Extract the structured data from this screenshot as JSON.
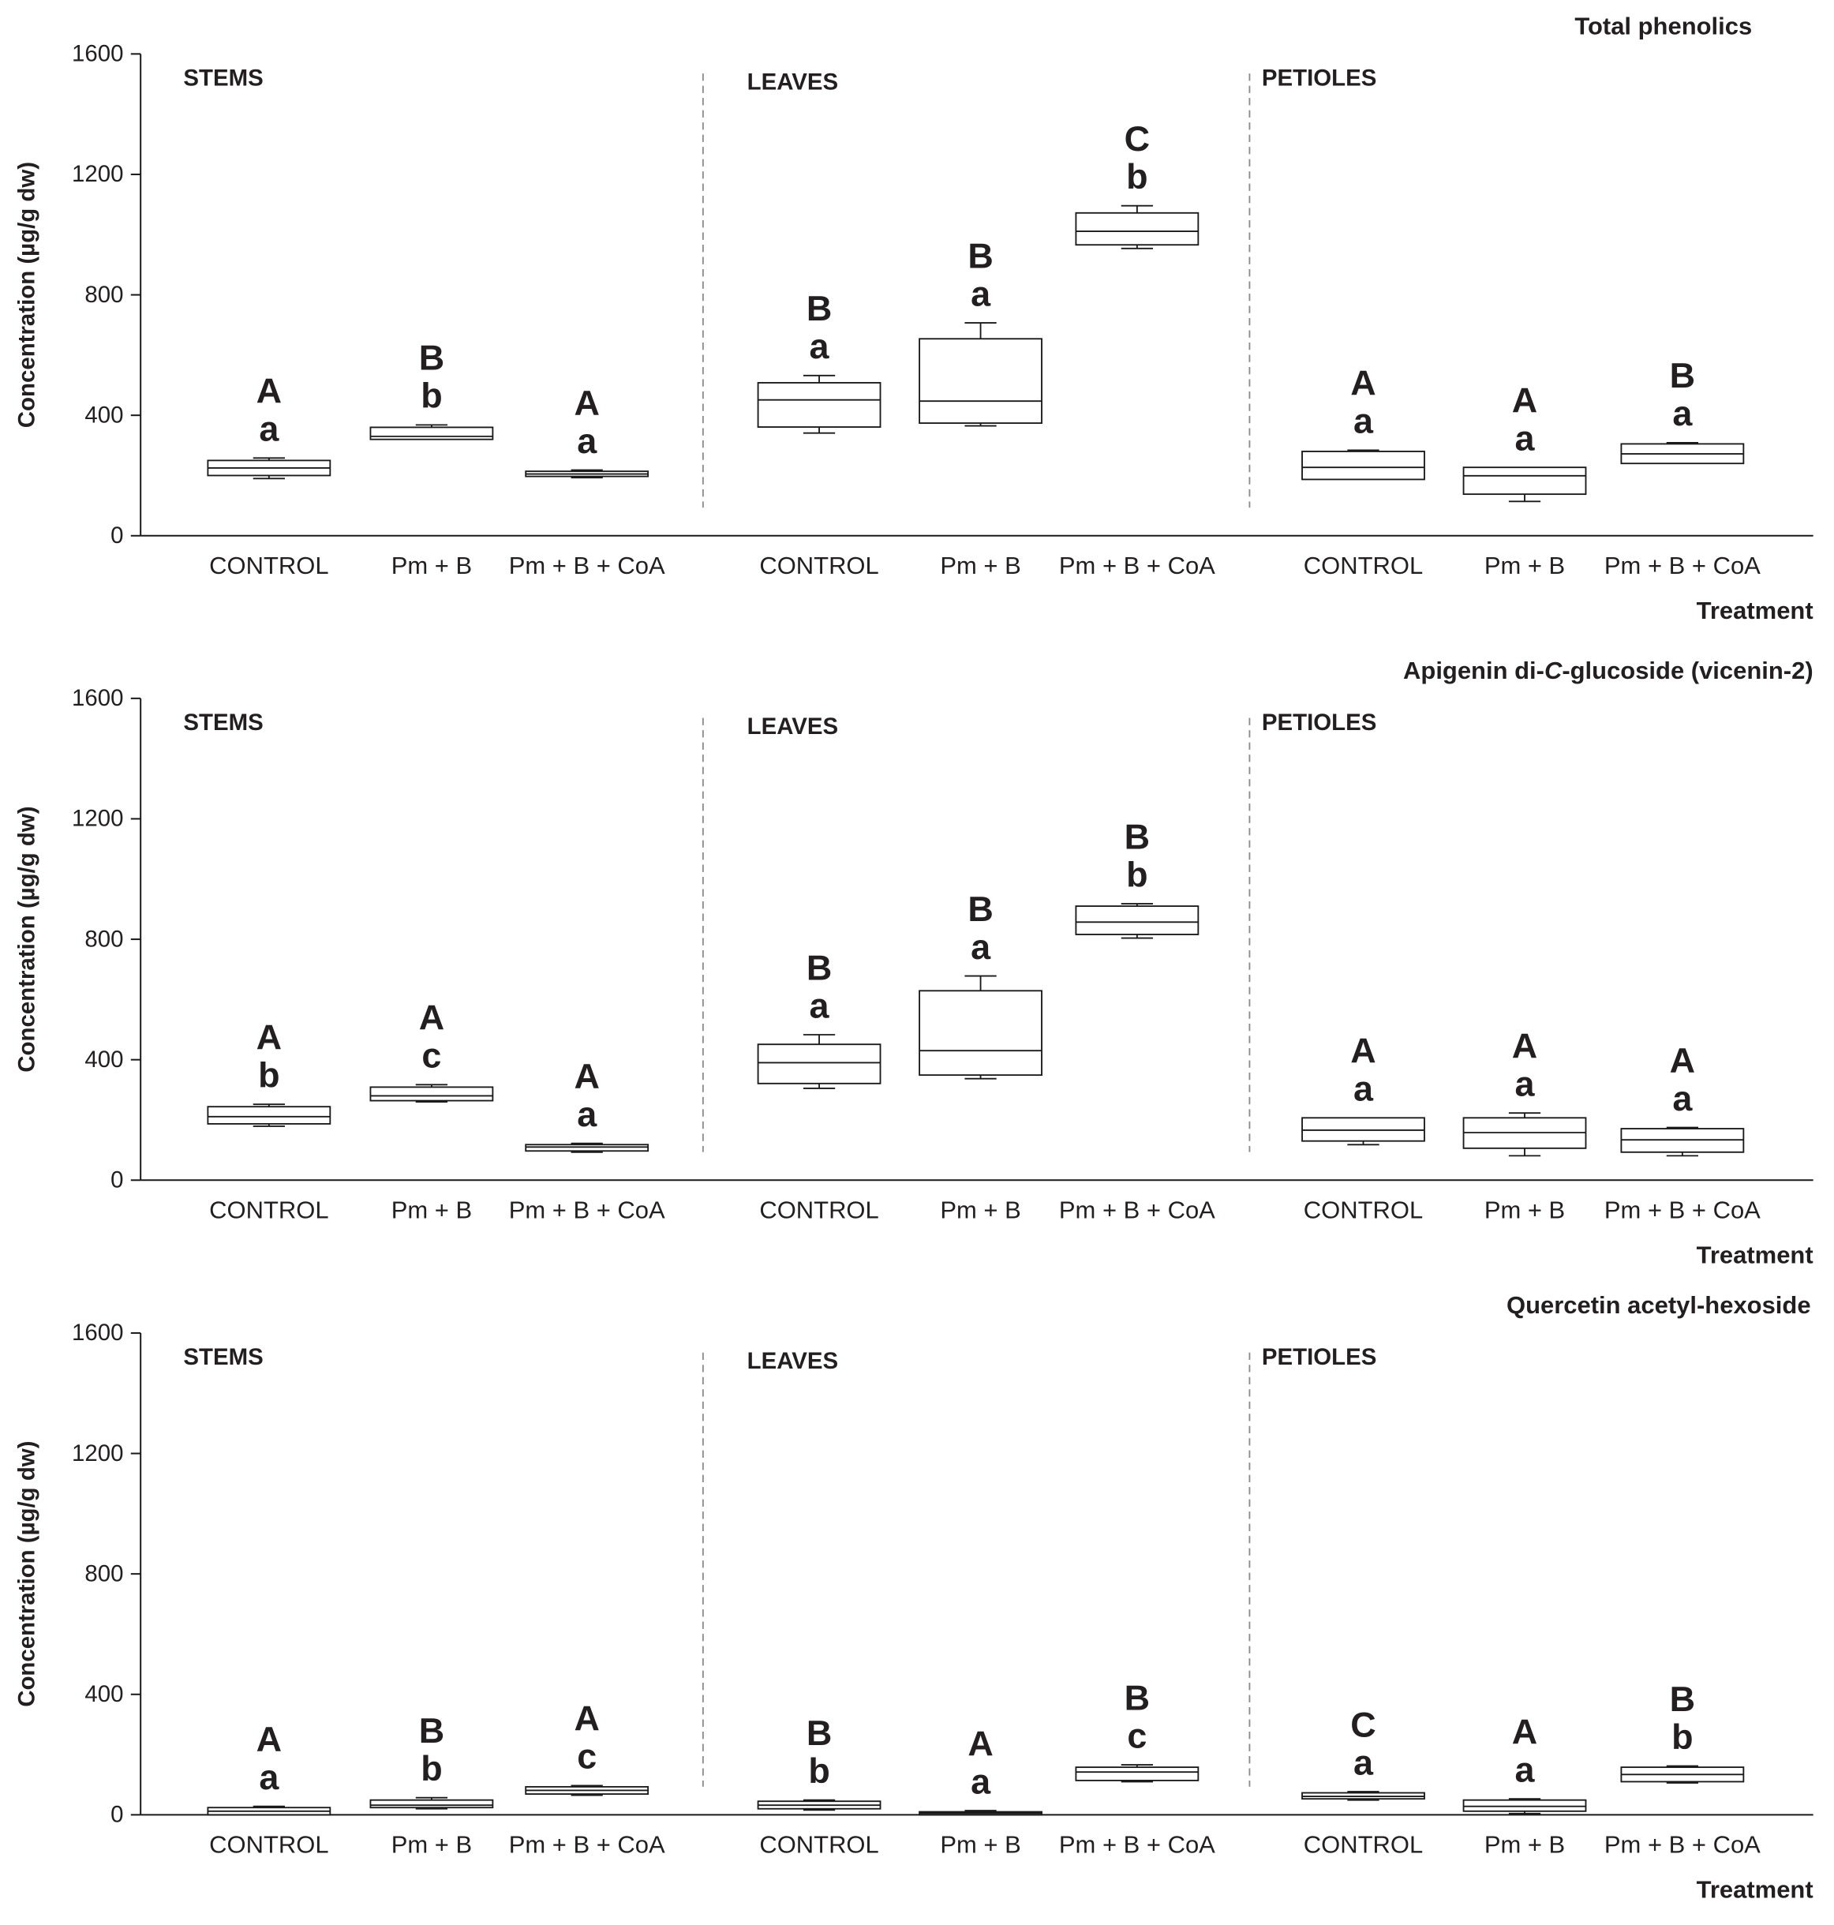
{
  "colors": {
    "text": "#231f20",
    "stroke": "#1a1a1a",
    "box_fill": "#ffffff",
    "divider": "#8c8c8c"
  },
  "chart_data": [
    {
      "type": "box",
      "title_segments": [
        {
          "text": "Total phenolics"
        }
      ],
      "ylabel": "Concentration (µg/g dw)",
      "xlabel": "Treatment",
      "ylim": [
        0,
        1600
      ],
      "yticks": [
        0,
        400,
        800,
        1200,
        1600
      ],
      "groups": [
        {
          "name": "STEMS",
          "boxes": [
            {
              "category": "CONTROL",
              "min": 190,
              "q1": 200,
              "median": 225,
              "q3": 250,
              "max": 258,
              "letters": [
                "A",
                "a"
              ]
            },
            {
              "category": "Pm + B",
              "min": 320,
              "q1": 320,
              "median": 330,
              "q3": 360,
              "max": 368,
              "letters": [
                "B",
                "b"
              ]
            },
            {
              "category": "Pm + B + CoA",
              "min": 193,
              "q1": 197,
              "median": 205,
              "q3": 214,
              "max": 218,
              "letters": [
                "A",
                "a"
              ]
            }
          ]
        },
        {
          "name": "LEAVES",
          "boxes": [
            {
              "category": "CONTROL",
              "min": 341,
              "q1": 361,
              "median": 451,
              "q3": 508,
              "max": 532,
              "letters": [
                "B",
                "a"
              ]
            },
            {
              "category": "Pm + B",
              "min": 365,
              "q1": 374,
              "median": 447,
              "q3": 654,
              "max": 707,
              "letters": [
                "B",
                "a"
              ]
            },
            {
              "category": "Pm + B + CoA",
              "min": 954,
              "q1": 966,
              "median": 1011,
              "q3": 1072,
              "max": 1096,
              "letters": [
                "C",
                "b"
              ]
            }
          ]
        },
        {
          "name": "PETIOLES",
          "boxes": [
            {
              "category": "CONTROL",
              "min": 187,
              "q1": 187,
              "median": 227,
              "q3": 280,
              "max": 284,
              "letters": [
                "A",
                "a"
              ]
            },
            {
              "category": "Pm + B",
              "min": 114,
              "q1": 138,
              "median": 199,
              "q3": 227,
              "max": 227,
              "letters": [
                "A",
                "a"
              ]
            },
            {
              "category": "Pm + B + CoA",
              "min": 240,
              "q1": 240,
              "median": 272,
              "q3": 305,
              "max": 309,
              "letters": [
                "B",
                "a"
              ]
            }
          ]
        }
      ]
    },
    {
      "type": "box",
      "title_segments": [
        {
          "text": "Apigenin di-"
        },
        {
          "text": "C",
          "style": "italic"
        },
        {
          "text": "-glucoside (vicenin-2)"
        }
      ],
      "ylabel": "Concentration (µg/g dw)",
      "xlabel": "Treatment",
      "ylim": [
        0,
        1600
      ],
      "yticks": [
        0,
        400,
        800,
        1200,
        1600
      ],
      "groups": [
        {
          "name": "STEMS",
          "boxes": [
            {
              "category": "CONTROL",
              "min": 179,
              "q1": 187,
              "median": 211,
              "q3": 244,
              "max": 252,
              "letters": [
                "A",
                "b"
              ]
            },
            {
              "category": "Pm + B",
              "min": 260,
              "q1": 264,
              "median": 280,
              "q3": 309,
              "max": 317,
              "letters": [
                "A",
                "c"
              ]
            },
            {
              "category": "Pm + B + CoA",
              "min": 93,
              "q1": 97,
              "median": 110,
              "q3": 118,
              "max": 122,
              "letters": [
                "A",
                "a"
              ]
            }
          ]
        },
        {
          "name": "LEAVES",
          "boxes": [
            {
              "category": "CONTROL",
              "min": 305,
              "q1": 321,
              "median": 390,
              "q3": 451,
              "max": 483,
              "letters": [
                "B",
                "a"
              ]
            },
            {
              "category": "Pm + B",
              "min": 337,
              "q1": 349,
              "median": 430,
              "q3": 629,
              "max": 678,
              "letters": [
                "B",
                "a"
              ]
            },
            {
              "category": "Pm + B + CoA",
              "min": 804,
              "q1": 816,
              "median": 857,
              "q3": 910,
              "max": 918,
              "letters": [
                "B",
                "b"
              ]
            }
          ]
        },
        {
          "name": "PETIOLES",
          "boxes": [
            {
              "category": "CONTROL",
              "min": 118,
              "q1": 130,
              "median": 166,
              "q3": 207,
              "max": 207,
              "letters": [
                "A",
                "a"
              ]
            },
            {
              "category": "Pm + B",
              "min": 81,
              "q1": 106,
              "median": 158,
              "q3": 207,
              "max": 223,
              "letters": [
                "A",
                "a"
              ]
            },
            {
              "category": "Pm + B + CoA",
              "min": 81,
              "q1": 93,
              "median": 134,
              "q3": 171,
              "max": 175,
              "letters": [
                "A",
                "a"
              ]
            }
          ]
        }
      ]
    },
    {
      "type": "box",
      "title_segments": [
        {
          "text": "Quercetin acetyl-hexoside"
        }
      ],
      "ylabel": "Concentration (µg/g dw)",
      "xlabel": "Treatment",
      "ylim": [
        0,
        1600
      ],
      "yticks": [
        0,
        400,
        800,
        1200,
        1600
      ],
      "groups": [
        {
          "name": "STEMS",
          "boxes": [
            {
              "category": "CONTROL",
              "min": 0,
              "q1": 0,
              "median": 12,
              "q3": 24,
              "max": 28,
              "letters": [
                "A",
                "a"
              ]
            },
            {
              "category": "Pm + B",
              "min": 20,
              "q1": 24,
              "median": 32,
              "q3": 49,
              "max": 57,
              "letters": [
                "B",
                "b"
              ]
            },
            {
              "category": "Pm + B + CoA",
              "min": 65,
              "q1": 69,
              "median": 81,
              "q3": 93,
              "max": 97,
              "letters": [
                "A",
                "c"
              ]
            }
          ]
        },
        {
          "name": "LEAVES",
          "boxes": [
            {
              "category": "CONTROL",
              "min": 16,
              "q1": 20,
              "median": 32,
              "q3": 45,
              "max": 49,
              "letters": [
                "B",
                "b"
              ]
            },
            {
              "category": "Pm + B",
              "min": 0,
              "q1": 0,
              "median": 5,
              "q3": 10,
              "max": 14,
              "letters": [
                "A",
                "a"
              ]
            },
            {
              "category": "Pm + B + CoA",
              "min": 110,
              "q1": 114,
              "median": 142,
              "q3": 158,
              "max": 166,
              "letters": [
                "B",
                "c"
              ]
            }
          ]
        },
        {
          "name": "PETIOLES",
          "boxes": [
            {
              "category": "CONTROL",
              "min": 49,
              "q1": 53,
              "median": 61,
              "q3": 73,
              "max": 77,
              "letters": [
                "C",
                "a"
              ]
            },
            {
              "category": "Pm + B",
              "min": 4,
              "q1": 12,
              "median": 28,
              "q3": 49,
              "max": 53,
              "letters": [
                "A",
                "a"
              ]
            },
            {
              "category": "Pm + B + CoA",
              "min": 106,
              "q1": 110,
              "median": 134,
              "q3": 158,
              "max": 162,
              "letters": [
                "B",
                "b"
              ]
            }
          ]
        }
      ]
    }
  ]
}
